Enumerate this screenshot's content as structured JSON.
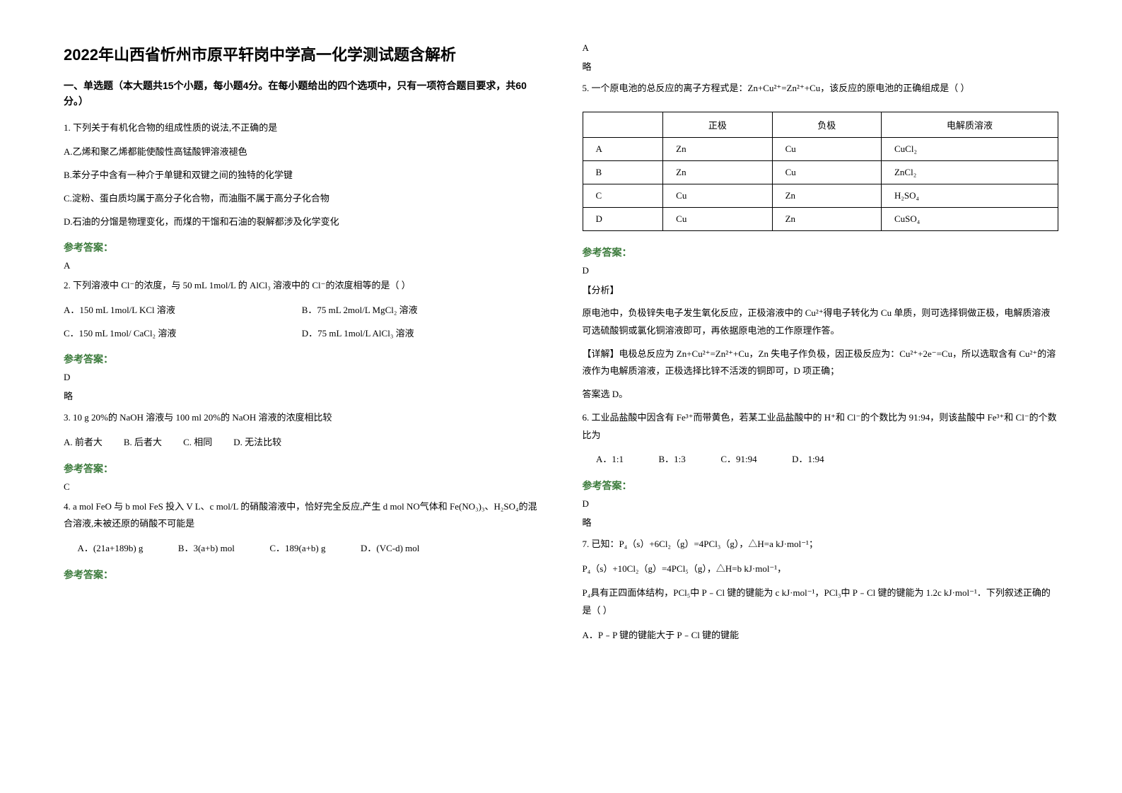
{
  "title": "2022年山西省忻州市原平轩岗中学高一化学测试题含解析",
  "section1_header": "一、单选题（本大题共15个小题，每小题4分。在每小题给出的四个选项中，只有一项符合题目要求，共60分。）",
  "q1": {
    "stem": "1. 下列关于有机化合物的组成性质的说法,不正确的是",
    "a": "A.乙烯和聚乙烯都能使酸性高锰酸钾溶液褪色",
    "b": "B.苯分子中含有一种介于单键和双键之间的独特的化学键",
    "c": "C.淀粉、蛋白质均属于高分子化合物，而油脂不属于高分子化合物",
    "d": "D.石油的分馏是物理变化，而煤的干馏和石油的裂解都涉及化学变化"
  },
  "q2": {
    "stem": "2. 下列溶液中 Cl⁻的浓度，与 50 mL 1mol/L 的 AlCl₃ 溶液中的 Cl⁻的浓度相等的是（           ）",
    "a": "A．150 mL   1mol/L  KCl 溶液",
    "b": "B．75 mL   2mol/L MgCl₂ 溶液",
    "c": "C．150 mL   1mol/ CaCl₂ 溶液",
    "d": "D．75 mL   1mol/L  AlCl₃ 溶液"
  },
  "q3": {
    "stem": "3. 10 g 20%的 NaOH 溶液与 100 ml 20%的 NaOH 溶液的浓度相比较",
    "a": "A. 前者大",
    "b": "B. 后者大",
    "c": "C. 相同",
    "d": "D. 无法比较"
  },
  "q4": {
    "stem1": "4. a mol FeO 与 b mol FeS 投入 V L、c mol/L 的硝酸溶液中，恰好完全反应,产生 d mol NO气体和 Fe(NO₃)₃、H₂SO₄的混合溶液,未被还原的硝酸不可能是",
    "a": "A．(21a+189b) g",
    "b": "B．3(a+b) mol",
    "c": "C．189(a+b) g",
    "d": "D．(VC-d) mol"
  },
  "q5": {
    "stem": "5. 一个原电池的总反应的离子方程式是：Zn+Cu²⁺=Zn²⁺+Cu，该反应的原电池的正确组成是（       ）",
    "headers": [
      "",
      "正极",
      "负极",
      "电解质溶液"
    ],
    "rows": [
      [
        "A",
        "Zn",
        "Cu",
        "CuCl₂"
      ],
      [
        "B",
        "Zn",
        "Cu",
        "ZnCl₂"
      ],
      [
        "C",
        "Cu",
        "Zn",
        "H₂SO₄"
      ],
      [
        "D",
        "Cu",
        "Zn",
        "CuSO₄"
      ]
    ],
    "analysis_heading": "【分析】",
    "analysis_body": "原电池中，负极锌失电子发生氧化反应，正极溶液中的 Cu²⁺得电子转化为 Cu 单质，则可选择铜做正极，电解质溶液可选硫酸铜或氯化铜溶液即可，再依据原电池的工作原理作答。",
    "detail_heading": "【详解】",
    "detail_body": "电极总反应为 Zn+Cu²⁺=Zn²⁺+Cu，Zn 失电子作负极，因正极反应为：Cu²⁺+2e⁻=Cu，所以选取含有 Cu²⁺的溶液作为电解质溶液，正极选择比锌不活泼的铜即可，D 项正确；",
    "answer_line": "答案选 D。"
  },
  "q6": {
    "stem": "6. 工业品盐酸中因含有 Fe³⁺而带黄色，若某工业品盐酸中的 H⁺和 Cl⁻的个数比为 91:94，则该盐酸中 Fe³⁺和 Cl⁻的个数比为",
    "a": "A．1:1",
    "b": "B．1:3",
    "c": "C．91:94",
    "d": "D．1:94"
  },
  "q7": {
    "stem1": "7. 已知：P₄（s）+6Cl₂（g）=4PCl₃（g），△H=a kJ·mol⁻¹；",
    "stem2": "P₄（s）+10Cl₂（g）=4PCl₅（g），△H=b kJ·mol⁻¹，",
    "stem3": "P₄具有正四面体结构，PCl₅中 P﹣Cl 键的键能为 c kJ·mol⁻¹，PCl₃中 P﹣Cl 键的键能为 1.2c kJ·mol⁻¹．下列叙述正确的是（    ）",
    "a": "A．P﹣P 键的键能大于 P﹣Cl 键的键能"
  },
  "answers_heading": "参考答案：",
  "ans1": "A",
  "ans2": "D",
  "ans2_note": "略",
  "ans3": "C",
  "ans4_top": "A",
  "ans4_note": "略",
  "ans5": "D",
  "ans6": "D",
  "ans6_note": "略"
}
